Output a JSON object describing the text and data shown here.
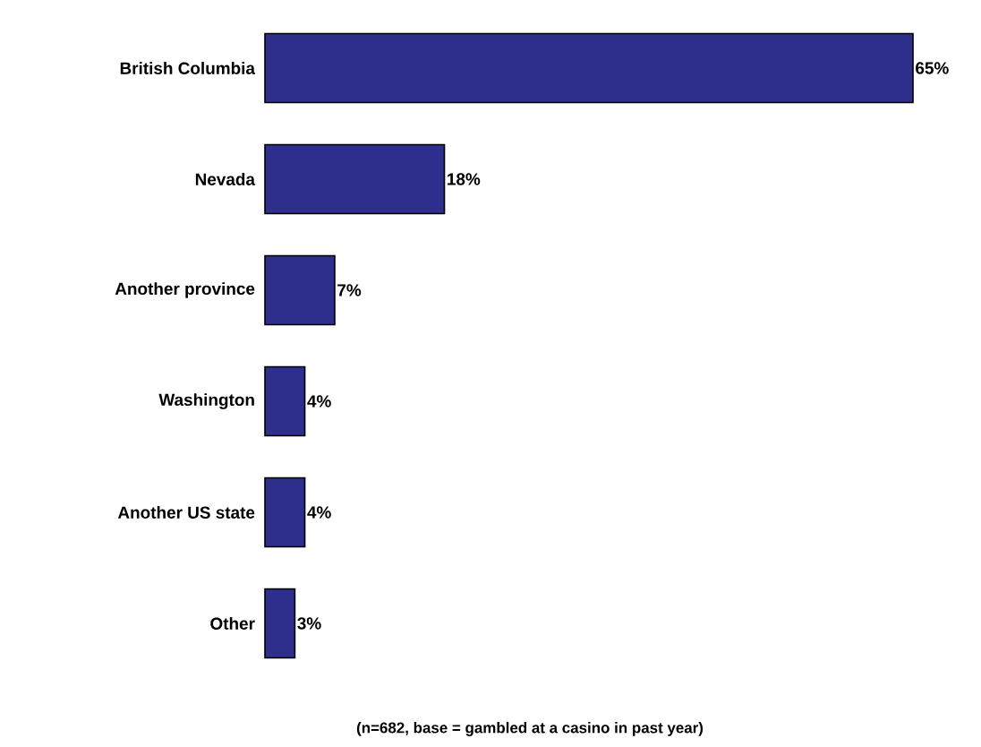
{
  "chart_data": {
    "type": "bar",
    "orientation": "horizontal",
    "categories": [
      "British Columbia",
      "Nevada",
      "Another province",
      "Washington",
      "Another US state",
      "Other"
    ],
    "values": [
      65,
      18,
      7,
      4,
      4,
      3
    ],
    "value_labels": [
      "65%",
      "18%",
      "7%",
      "4%",
      "4%",
      "3%"
    ],
    "color": "#2e2e8c",
    "annotations": [
      "(n=682, base = gambled at a casino in past year)"
    ]
  }
}
